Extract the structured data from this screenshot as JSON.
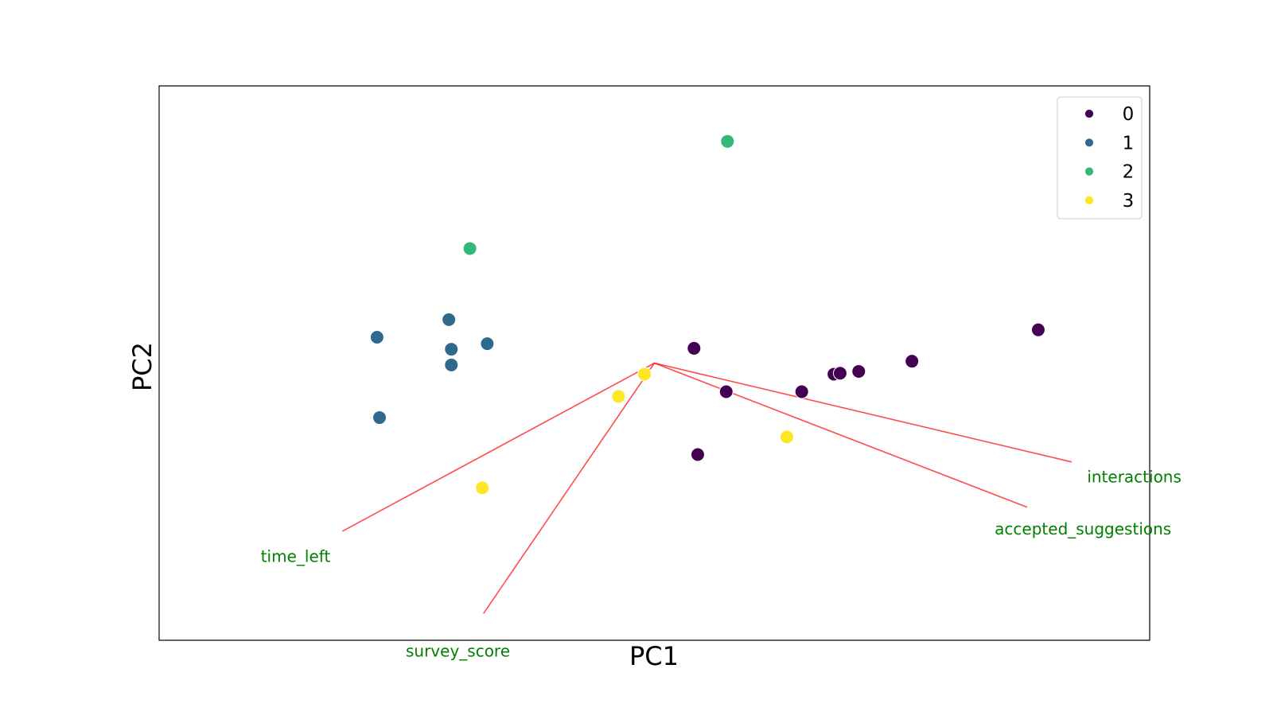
{
  "chart_data": {
    "type": "scatter",
    "title": "",
    "xlabel": "PC1",
    "ylabel": "PC2",
    "xlim": [
      -4.0,
      4.0
    ],
    "ylim": [
      -3.0,
      3.0
    ],
    "ticks_visible": false,
    "grid": false,
    "legend": {
      "position": "top-right",
      "entries": [
        "0",
        "1",
        "2",
        "3"
      ]
    },
    "series": [
      {
        "name": "0",
        "color": "#440154",
        "points": [
          {
            "x": 0.32,
            "y": 0.16
          },
          {
            "x": 0.58,
            "y": -0.31
          },
          {
            "x": 1.19,
            "y": -0.31
          },
          {
            "x": 1.45,
            "y": -0.12
          },
          {
            "x": 1.5,
            "y": -0.11
          },
          {
            "x": 1.65,
            "y": -0.09
          },
          {
            "x": 2.08,
            "y": 0.02
          },
          {
            "x": 3.1,
            "y": 0.36
          },
          {
            "x": 0.35,
            "y": -0.99
          }
        ]
      },
      {
        "name": "1",
        "color": "#31688e",
        "points": [
          {
            "x": -2.24,
            "y": 0.28
          },
          {
            "x": -1.66,
            "y": 0.47
          },
          {
            "x": -1.64,
            "y": 0.15
          },
          {
            "x": -1.64,
            "y": -0.02
          },
          {
            "x": -1.35,
            "y": 0.21
          },
          {
            "x": -2.22,
            "y": -0.59
          }
        ]
      },
      {
        "name": "2",
        "color": "#35b779",
        "points": [
          {
            "x": 0.59,
            "y": 2.4
          },
          {
            "x": -1.49,
            "y": 1.24
          }
        ]
      },
      {
        "name": "3",
        "color": "#fde725",
        "points": [
          {
            "x": -0.08,
            "y": -0.12
          },
          {
            "x": -0.29,
            "y": -0.36
          },
          {
            "x": 1.07,
            "y": -0.8
          },
          {
            "x": -1.39,
            "y": -1.35
          }
        ]
      }
    ],
    "loading_vectors": {
      "origin": {
        "x": 0.0,
        "y": 0.0
      },
      "arrow_color": "#ff0000",
      "label_color": "#008000",
      "vectors": [
        {
          "name": "interactions",
          "x": 3.37,
          "y": -1.07
        },
        {
          "name": "accepted_suggestions",
          "x": 3.01,
          "y": -1.56
        },
        {
          "name": "time_left",
          "x": -2.52,
          "y": -1.82
        },
        {
          "name": "survey_score",
          "x": -1.38,
          "y": -2.71
        }
      ]
    }
  }
}
